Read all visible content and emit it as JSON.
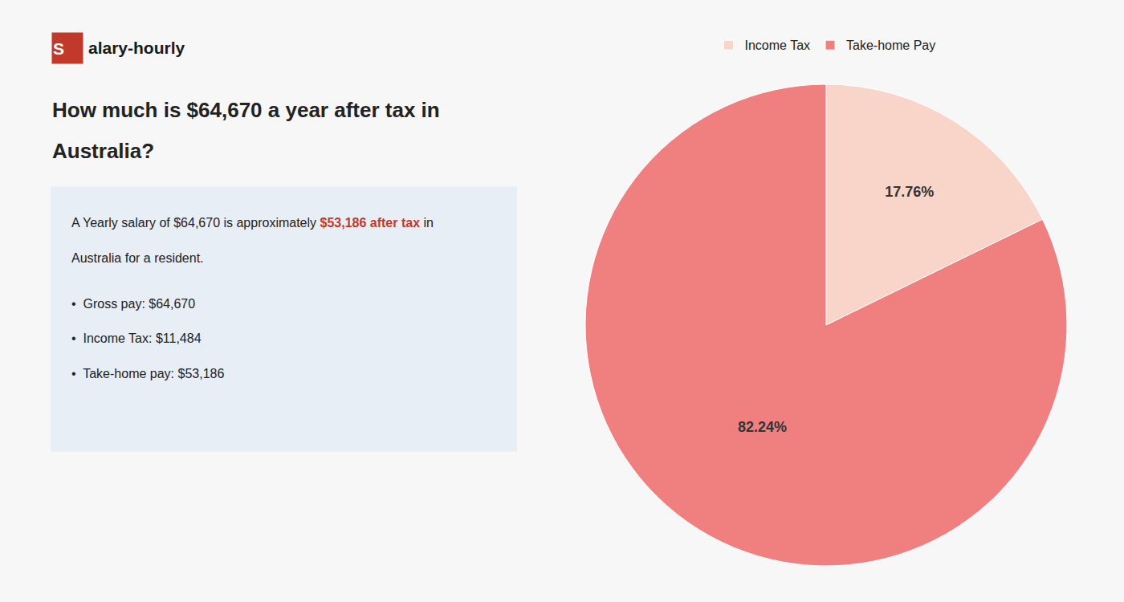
{
  "chart_data": {
    "type": "pie",
    "title": [
      "How much is $64,670 a year after tax in",
      "Australia?"
    ],
    "annotations": [
      "S",
      "alary-hourly",
      "A Yearly salary of $64,670 is approximately ",
      "$53,186 after tax",
      " in",
      "Australia for a resident.",
      "•  Gross pay: $64,670",
      "•  Income Tax: $11,484",
      "•  Take-home pay: $53,186"
    ],
    "categories": [
      "Income Tax",
      "Take-home Pay"
    ],
    "values": [
      17.76,
      82.24
    ],
    "value_labels": [
      "17.76%",
      "82.24%"
    ],
    "colors": [
      "#f8d5c8",
      "#f08080"
    ],
    "data_labels": true,
    "legend": "top"
  }
}
